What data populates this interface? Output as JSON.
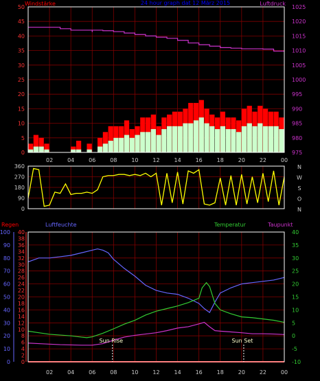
{
  "header": {
    "title": "24 hour graph dat  12 März 2015",
    "left_label": "Windstärke",
    "right_label": "Luftdruck"
  },
  "colors": {
    "background": "#000000",
    "frame": "#ffffff",
    "grid": "#7f0000",
    "wind_gust": "#ff0000",
    "wind_avg": "#ccffcc",
    "wind_mean_line": "#ffff66",
    "pressure": "#cc33cc",
    "direction": "#ffff00",
    "rain": "#ff0000",
    "humidity": "#6666ff",
    "temperature": "#33cc33",
    "dewpoint": "#cc33cc",
    "title": "#0000ff",
    "tick_labels": "#cccccc"
  },
  "x_tick_labels": [
    "02",
    "04",
    "06",
    "08",
    "10",
    "12",
    "14",
    "16",
    "18",
    "20",
    "22",
    "00"
  ],
  "chart_data": [
    {
      "type": "bar",
      "panel": "wind_pressure",
      "x_hours_range": [
        0,
        24
      ],
      "left_axis": {
        "label": "Windstärke",
        "ylim": [
          0,
          50
        ],
        "ticks": [
          "0",
          "5",
          "10",
          "15",
          "20",
          "25",
          "30",
          "35",
          "40",
          "45",
          "50"
        ]
      },
      "right_axis": {
        "label": "Luftdruck",
        "ylim": [
          975,
          1025
        ],
        "ticks": [
          "975",
          "980",
          "985",
          "990",
          "995",
          "1000",
          "1005",
          "1010",
          "1015",
          "1020",
          "1025"
        ]
      },
      "series": [
        {
          "name": "Böen",
          "axis": "left",
          "x": [
            0,
            0.5,
            1,
            1.5,
            2,
            2.5,
            3,
            3.5,
            4,
            4.5,
            5,
            5.5,
            6,
            6.5,
            7,
            7.5,
            8,
            8.5,
            9,
            9.5,
            10,
            10.5,
            11,
            11.5,
            12,
            12.5,
            13,
            13.5,
            14,
            14.5,
            15,
            15.5,
            16,
            16.5,
            17,
            17.5,
            18,
            18.5,
            19,
            19.5,
            20,
            20.5,
            21,
            21.5,
            22,
            22.5,
            23,
            23.5,
            24
          ],
          "values": [
            3,
            6,
            5,
            3,
            0,
            0,
            0,
            0,
            2,
            4,
            0,
            3,
            0,
            5,
            7,
            9,
            9,
            9,
            11,
            8,
            9,
            12,
            12,
            13,
            9,
            12,
            13,
            14,
            14,
            15,
            17,
            17,
            18,
            15,
            13,
            12,
            14,
            12,
            12,
            11,
            15,
            16,
            14,
            16,
            15,
            14,
            14,
            12,
            8
          ]
        },
        {
          "name": "Mittel",
          "axis": "left",
          "x": [
            0,
            0.5,
            1,
            1.5,
            2,
            2.5,
            3,
            3.5,
            4,
            4.5,
            5,
            5.5,
            6,
            6.5,
            7,
            7.5,
            8,
            8.5,
            9,
            9.5,
            10,
            10.5,
            11,
            11.5,
            12,
            12.5,
            13,
            13.5,
            14,
            14.5,
            15,
            15.5,
            16,
            16.5,
            17,
            17.5,
            18,
            18.5,
            19,
            19.5,
            20,
            20.5,
            21,
            21.5,
            22,
            22.5,
            23,
            23.5,
            24
          ],
          "values": [
            1,
            2,
            2,
            1,
            0,
            0,
            0,
            0,
            1,
            1,
            0,
            1,
            0,
            2,
            3,
            4,
            5,
            5,
            6,
            5,
            6,
            7,
            7,
            8,
            6,
            8,
            9,
            9,
            9,
            10,
            10,
            11,
            12,
            10,
            9,
            8,
            9,
            8,
            8,
            7,
            9,
            10,
            9,
            10,
            9,
            9,
            9,
            8,
            5
          ]
        },
        {
          "name": "Luftdruck",
          "axis": "right",
          "x": [
            0,
            2,
            3,
            4,
            5,
            6,
            6.01,
            7,
            8,
            9,
            10,
            11,
            12,
            13,
            14,
            15,
            16,
            17,
            18,
            19,
            20,
            21,
            22,
            23,
            23.01,
            24
          ],
          "values": [
            1018.0,
            1018.0,
            1017.5,
            1017.0,
            1017.0,
            1016.5,
            1017.0,
            1016.8,
            1016.5,
            1016.0,
            1015.5,
            1015.0,
            1014.6,
            1014.2,
            1013.5,
            1012.6,
            1012.0,
            1011.5,
            1011.0,
            1010.8,
            1010.6,
            1010.6,
            1010.5,
            1010.2,
            1009.8,
            1009.8
          ]
        }
      ]
    },
    {
      "type": "scatter",
      "panel": "direction",
      "x_hours_range": [
        0,
        24
      ],
      "ylim": [
        0,
        360
      ],
      "left_ticks": [
        "0",
        "90",
        "180",
        "270",
        "360"
      ],
      "right_labels": [
        "N",
        "W",
        "S",
        "O",
        "N"
      ],
      "series": [
        {
          "name": "Windrichtung",
          "x": [
            0,
            0.5,
            1,
            1.5,
            2,
            2.5,
            3,
            3.5,
            4,
            4.5,
            5,
            5.5,
            6,
            6.5,
            7,
            7.5,
            8,
            8.5,
            9,
            9.5,
            10,
            10.5,
            11,
            11.5,
            12,
            12.5,
            13,
            13.5,
            14,
            14.5,
            15,
            15.5,
            16,
            16.5,
            17,
            17.5,
            18,
            18.5,
            19,
            19.5,
            20,
            20.5,
            21,
            21.5,
            22,
            22.5,
            23,
            23.5,
            24
          ],
          "values": [
            90,
            340,
            330,
            20,
            30,
            140,
            130,
            210,
            120,
            130,
            130,
            140,
            130,
            160,
            270,
            280,
            280,
            290,
            290,
            280,
            290,
            280,
            300,
            270,
            300,
            30,
            300,
            50,
            310,
            40,
            320,
            300,
            330,
            40,
            30,
            50,
            260,
            30,
            280,
            30,
            290,
            40,
            270,
            50,
            300,
            60,
            320,
            30,
            270
          ]
        }
      ]
    },
    {
      "type": "line",
      "panel": "climate",
      "x_hours_range": [
        0,
        24
      ],
      "axes": [
        {
          "label": "Regen",
          "ylim": [
            0,
            40
          ],
          "ticks": [
            "0",
            "2",
            "4",
            "6",
            "8",
            "10",
            "12",
            "14",
            "16",
            "18",
            "20",
            "22",
            "24",
            "26",
            "28",
            "30",
            "32",
            "34",
            "36",
            "38",
            "40"
          ]
        },
        {
          "label": "Luftfeuchte",
          "ylim": [
            0,
            100
          ],
          "ticks": [
            "0",
            "10",
            "20",
            "30",
            "40",
            "50",
            "60",
            "70",
            "80",
            "90",
            "100"
          ]
        },
        {
          "label": "Temperatur",
          "ylim": [
            -10,
            40
          ],
          "ticks": [
            "-10",
            "-5",
            "0",
            "5",
            "10",
            "15",
            "20",
            "25",
            "30",
            "35",
            "40"
          ]
        },
        {
          "label": "Taupunkt",
          "ylim": [
            -10,
            40
          ]
        }
      ],
      "annotations": [
        {
          "text": "Sun Rise",
          "x": 7.9
        },
        {
          "text": "Sun Set",
          "x": 20.2
        }
      ],
      "series": [
        {
          "name": "Regen",
          "axis": "Regen",
          "x": [
            0,
            24
          ],
          "values": [
            0,
            0
          ]
        },
        {
          "name": "Luftfeuchte",
          "axis": "Luftfeuchte",
          "x": [
            0,
            1,
            2,
            3,
            4,
            5,
            6,
            6.5,
            7,
            7.5,
            8,
            9,
            10,
            11,
            12,
            13,
            14,
            15,
            16,
            16.5,
            17,
            17.5,
            18,
            19,
            20,
            21,
            22,
            23,
            24
          ],
          "values": [
            77,
            80,
            80,
            81,
            82,
            84,
            86,
            87,
            86,
            84,
            79,
            72,
            66,
            59,
            55,
            53,
            52,
            49,
            45,
            41,
            38,
            46,
            53,
            57,
            60,
            61,
            62,
            63,
            65
          ]
        },
        {
          "name": "Temperatur",
          "axis": "Temperatur",
          "x": [
            0,
            1,
            2,
            3,
            4,
            5,
            5.5,
            6,
            7,
            8,
            9,
            10,
            11,
            12,
            13,
            14,
            15,
            16,
            16.3,
            16.7,
            17,
            17.5,
            18,
            19,
            20,
            21,
            22,
            23,
            24
          ],
          "values": [
            1.8,
            1.2,
            0.6,
            0.3,
            0.0,
            -0.5,
            -0.7,
            -0.4,
            1.0,
            2.7,
            4.5,
            6.0,
            8.0,
            9.5,
            10.5,
            11.5,
            12.8,
            14.5,
            18.5,
            20.5,
            19.0,
            12.5,
            10.0,
            8.5,
            7.3,
            7.0,
            6.5,
            6.0,
            5.2
          ]
        },
        {
          "name": "Taupunkt",
          "axis": "Temperatur",
          "x": [
            0,
            1,
            2,
            3,
            4,
            5,
            6,
            7,
            8,
            9,
            10,
            11,
            12,
            13,
            14,
            15,
            16,
            16.5,
            17,
            17.5,
            18,
            19,
            20,
            21,
            22,
            23,
            24
          ],
          "values": [
            -2.8,
            -3.0,
            -3.2,
            -3.4,
            -3.5,
            -3.6,
            -3.6,
            -3.0,
            -1.7,
            -0.5,
            0.2,
            0.7,
            1.2,
            2.0,
            3.0,
            3.5,
            4.6,
            5.2,
            3.5,
            2.0,
            1.8,
            1.5,
            1.2,
            0.8,
            0.8,
            0.7,
            0.5
          ]
        }
      ]
    }
  ],
  "climate_labels": {
    "rain": "Regen",
    "humidity": "Luftfeuchte",
    "temperature": "Temperatur",
    "dewpoint": "Taupunkt"
  }
}
